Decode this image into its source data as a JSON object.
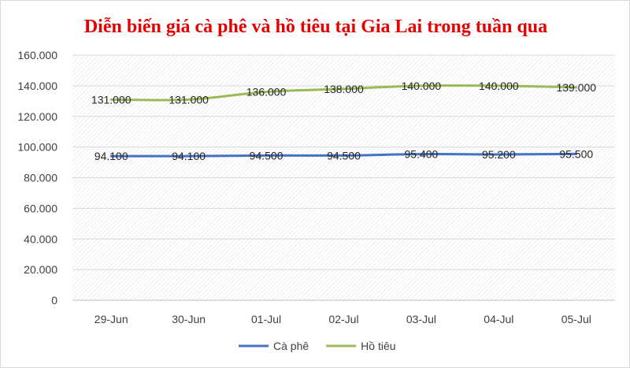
{
  "chart_data": {
    "type": "line",
    "title": "Diễn biến giá cà phê và hồ tiêu tại Gia Lai trong tuần qua",
    "categories": [
      "29-Jun",
      "30-Jun",
      "01-Jul",
      "02-Jul",
      "03-Jul",
      "04-Jul",
      "05-Jul"
    ],
    "ylim": [
      0,
      160000
    ],
    "yticks": [
      {
        "value": 0,
        "label": "0"
      },
      {
        "value": 20000,
        "label": "20.000"
      },
      {
        "value": 40000,
        "label": "40.000"
      },
      {
        "value": 60000,
        "label": "60.000"
      },
      {
        "value": 80000,
        "label": "80.000"
      },
      {
        "value": 100000,
        "label": "100.000"
      },
      {
        "value": 120000,
        "label": "120.000"
      },
      {
        "value": 140000,
        "label": "140.000"
      },
      {
        "value": 160000,
        "label": "160.000"
      }
    ],
    "series": [
      {
        "name": "Cà phê",
        "color": "#4472c4",
        "values": [
          94100,
          94100,
          94500,
          94500,
          95400,
          95200,
          95500
        ],
        "labels": [
          "94.100",
          "94.100",
          "94.500",
          "94.500",
          "95.400",
          "95.200",
          "95.500"
        ]
      },
      {
        "name": "Hồ tiêu",
        "color": "#9bbb59",
        "values": [
          131000,
          131000,
          136000,
          138000,
          140000,
          140000,
          139000
        ],
        "labels": [
          "131.000",
          "131.000",
          "136.000",
          "138.000",
          "140.000",
          "140.000",
          "139.000"
        ]
      }
    ],
    "grid": true,
    "legend": "bottom",
    "plot_pattern": "diagonal-hatch"
  }
}
